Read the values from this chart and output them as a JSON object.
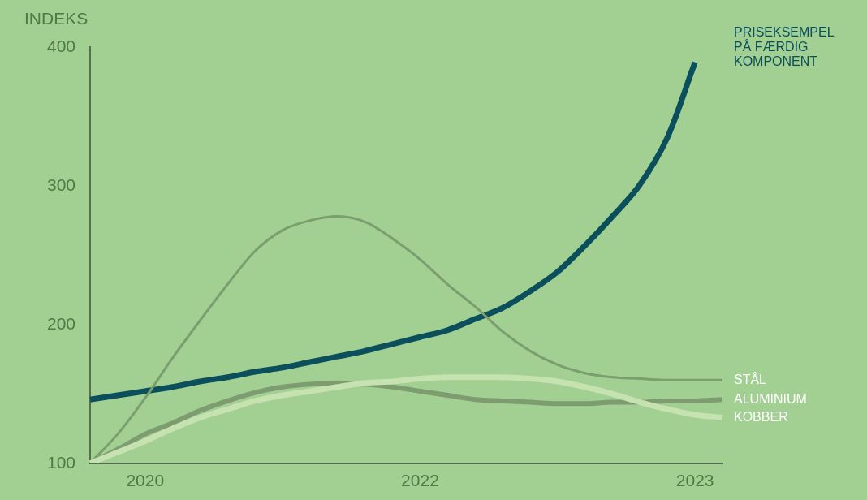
{
  "chart_data": {
    "type": "line",
    "ylabel": "INDEKS",
    "categories": [
      null,
      null,
      "2020",
      null,
      null,
      null,
      null,
      null,
      null,
      null,
      null,
      null,
      "2022",
      null,
      null,
      null,
      null,
      null,
      null,
      null,
      null,
      null,
      "2023",
      null
    ],
    "ylim": [
      100,
      400
    ],
    "yticks": [
      100,
      200,
      300,
      400
    ],
    "grid": false,
    "legend": false,
    "marker": "none",
    "line_style": "solid",
    "series": [
      {
        "name": "PRISEKSEMPEL PÅ FÆRDIG KOMPONENT",
        "color": "#0b4f5c",
        "values": [
          146,
          149,
          152,
          155,
          159,
          162,
          166,
          169,
          173,
          177,
          181,
          186,
          191,
          196,
          204,
          212,
          224,
          238,
          257,
          278,
          301,
          335,
          389,
          null
        ]
      },
      {
        "name": "STÅL",
        "color": "#7a9e6e",
        "values": [
          100,
          121,
          147,
          176,
          203,
          229,
          253,
          268,
          275,
          278,
          274,
          262,
          247,
          229,
          213,
          195,
          181,
          171,
          165,
          162,
          161,
          160,
          160,
          160
        ]
      },
      {
        "name": "ALUMINIUM",
        "color": "#7d9c70",
        "values": [
          100,
          110,
          121,
          129,
          138,
          145,
          151,
          155,
          157,
          158,
          157,
          155,
          152,
          149,
          146,
          145,
          144,
          143,
          143,
          144,
          144,
          145,
          145,
          146
        ]
      },
      {
        "name": "KOBBER",
        "color": "#c5e2b0",
        "values": [
          100,
          108,
          116,
          125,
          133,
          139,
          145,
          149,
          152,
          155,
          158,
          159,
          161,
          162,
          162,
          162,
          161,
          159,
          155,
          150,
          144,
          139,
          135,
          133
        ]
      }
    ]
  }
}
